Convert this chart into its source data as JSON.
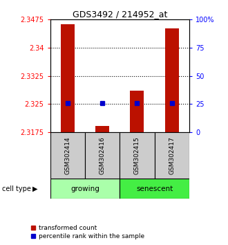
{
  "title": "GDS3492 / 214952_at",
  "samples": [
    "GSM302414",
    "GSM302416",
    "GSM302415",
    "GSM302417"
  ],
  "bar_values": [
    2.3462,
    2.3192,
    2.3285,
    2.3452
  ],
  "percentile_values": [
    2.3252,
    2.3252,
    2.3252,
    2.3252
  ],
  "ymin": 2.3175,
  "ymax": 2.3475,
  "yticks_left": [
    2.3175,
    2.325,
    2.3325,
    2.34,
    2.3475
  ],
  "ytick_left_labels": [
    "2.3175",
    "2.325",
    "2.3325",
    "2.34",
    "2.3475"
  ],
  "yticks_right": [
    0,
    25,
    50,
    75,
    100
  ],
  "ytick_right_labels": [
    "0",
    "25",
    "50",
    "75",
    "100%"
  ],
  "bar_color": "#bb1100",
  "percentile_color": "#0000cc",
  "groups": [
    {
      "label": "growing",
      "samples_idx": [
        0,
        1
      ],
      "color": "#aaffaa"
    },
    {
      "label": "senescent",
      "samples_idx": [
        2,
        3
      ],
      "color": "#44ee44"
    }
  ],
  "cell_type_label": "cell type",
  "legend_items": [
    {
      "label": "transformed count",
      "color": "#bb1100"
    },
    {
      "label": "percentile rank within the sample",
      "color": "#0000cc"
    }
  ],
  "bar_width": 0.4
}
